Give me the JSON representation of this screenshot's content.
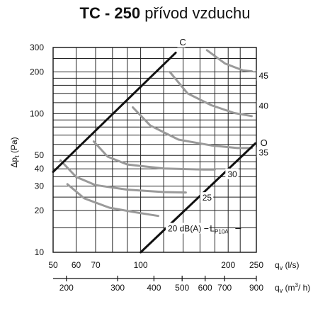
{
  "title": {
    "bold": "TC - 250",
    "rest": " přívod vzduchu"
  },
  "chart_data": {
    "type": "line",
    "x_scale": "log",
    "y_scale": "log",
    "xlim": [
      50,
      250
    ],
    "ylim": [
      10,
      300
    ],
    "xlabel": "qv (l/s)",
    "x2label": "qv (m3/ h)",
    "ylabel": "Δpt (Pa)",
    "x_ticks": [
      {
        "value": 50,
        "label": "50"
      },
      {
        "value": 60,
        "label": "60"
      },
      {
        "value": 70,
        "label": "70"
      },
      {
        "value": 100,
        "label": "100"
      },
      {
        "value": 200,
        "label": "200"
      },
      {
        "value": 250,
        "label": "250"
      }
    ],
    "x2_ticks": [
      {
        "value": 200,
        "label": "200"
      },
      {
        "value": 300,
        "label": "300"
      },
      {
        "value": 400,
        "label": "400"
      },
      {
        "value": 500,
        "label": "500"
      },
      {
        "value": 600,
        "label": "600"
      },
      {
        "value": 700,
        "label": "700"
      },
      {
        "value": 900,
        "label": "900"
      }
    ],
    "y_ticks": [
      {
        "value": 10,
        "label": "10"
      },
      {
        "value": 20,
        "label": "20"
      },
      {
        "value": 30,
        "label": "30"
      },
      {
        "value": 40,
        "label": "40"
      },
      {
        "value": 50,
        "label": "50"
      },
      {
        "value": 100,
        "label": "100"
      },
      {
        "value": 200,
        "label": "200"
      },
      {
        "value": 300,
        "label": "300"
      }
    ],
    "x_grid": [
      50,
      60,
      70,
      80,
      90,
      100,
      120,
      140,
      160,
      180,
      200,
      220,
      250
    ],
    "y_grid": [
      10,
      15,
      20,
      25,
      30,
      35,
      40,
      45,
      50,
      60,
      70,
      80,
      90,
      100,
      120,
      140,
      160,
      180,
      200,
      250,
      300
    ],
    "boundary_lines": [
      {
        "name": "C",
        "color": "#111111",
        "points": [
          [
            50,
            38
          ],
          [
            132,
            275
          ]
        ]
      },
      {
        "name": "O",
        "color": "#111111",
        "points": [
          [
            100,
            10
          ],
          [
            248,
            61
          ]
        ]
      }
    ],
    "noise_curves": [
      {
        "name": "20 dB(A)",
        "color": "#9a9a9a",
        "points": [
          [
            56,
            31
          ],
          [
            64,
            24.5
          ],
          [
            78,
            21
          ],
          [
            95,
            19.5
          ],
          [
            115,
            18.3
          ]
        ]
      },
      {
        "name": "25",
        "color": "#9a9a9a",
        "points": [
          [
            53,
            46
          ],
          [
            60,
            35
          ],
          [
            70,
            30.5
          ],
          [
            90,
            28.3
          ],
          [
            120,
            27.2
          ],
          [
            143,
            27
          ]
        ]
      },
      {
        "name": "30",
        "color": "#9a9a9a",
        "points": [
          [
            69,
            63
          ],
          [
            77,
            49
          ],
          [
            90,
            43
          ],
          [
            120,
            40.2
          ],
          [
            165,
            39.5
          ],
          [
            180,
            39.5
          ]
        ]
      },
      {
        "name": "35",
        "color": "#9a9a9a",
        "points": [
          [
            94,
            111
          ],
          [
            108,
            82
          ],
          [
            135,
            65
          ],
          [
            175,
            59
          ],
          [
            215,
            56.5
          ],
          [
            241,
            56.5
          ]
        ]
      },
      {
        "name": "40",
        "color": "#9a9a9a",
        "points": [
          [
            126,
            200
          ],
          [
            145,
            140
          ],
          [
            175,
            115
          ],
          [
            210,
            101
          ],
          [
            241,
            96
          ]
        ]
      },
      {
        "name": "45",
        "color": "#9a9a9a",
        "points": [
          [
            169,
            287
          ],
          [
            195,
            230
          ],
          [
            225,
            205
          ],
          [
            241,
            202
          ]
        ]
      }
    ],
    "annotations": [
      {
        "text": "C",
        "x": 136,
        "y": 330
      },
      {
        "text": "O",
        "x": 258,
        "y": 62
      },
      {
        "text": "45",
        "x": 255,
        "y": 190
      },
      {
        "text": "40",
        "x": 255,
        "y": 115
      },
      {
        "text": "35",
        "x": 255,
        "y": 53
      },
      {
        "text": "30",
        "x": 199,
        "y": 37
      },
      {
        "text": "25",
        "x": 163,
        "y": 25
      },
      {
        "text": "20 dB(A)",
        "x": 124,
        "y": 15
      },
      {
        "text": "L",
        "sub": "P10A",
        "x": 173,
        "y": 15
      }
    ]
  }
}
